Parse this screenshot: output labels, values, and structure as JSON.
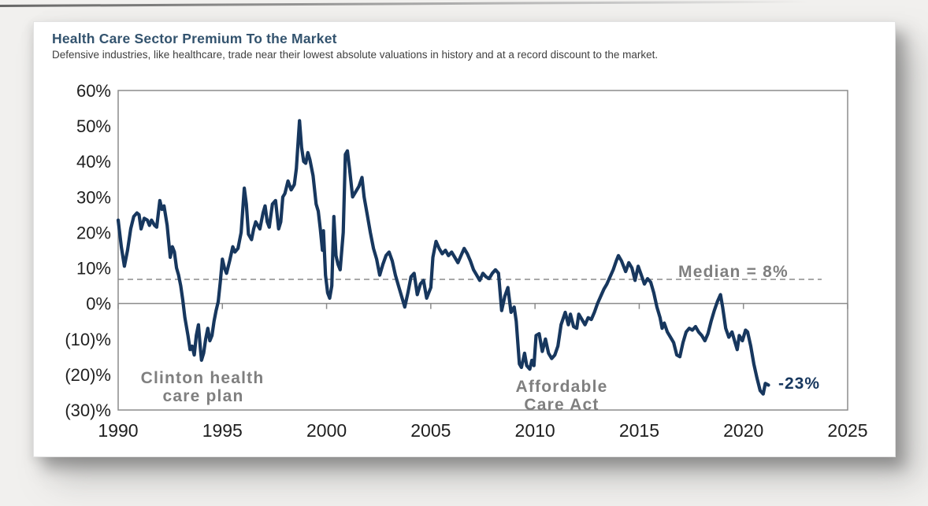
{
  "chart_data": {
    "type": "line",
    "title": "Health Care Sector Premium To the Market",
    "subtitle": "Defensive industries, like healthcare, trade near their lowest absolute valuations in history and at a record discount to the market.",
    "x_axis": {
      "min": 1990,
      "max": 2025,
      "ticks": [
        {
          "label": "1990",
          "value": 1990
        },
        {
          "label": "1995",
          "value": 1995
        },
        {
          "label": "2000",
          "value": 2000
        },
        {
          "label": "2005",
          "value": 2005
        },
        {
          "label": "2010",
          "value": 2010
        },
        {
          "label": "2015",
          "value": 2015
        },
        {
          "label": "2020",
          "value": 2020
        },
        {
          "label": "2025",
          "value": 2025
        }
      ]
    },
    "y_axis": {
      "min": -30,
      "max": 60,
      "ticks": [
        {
          "label": "60%",
          "value": 60
        },
        {
          "label": "50%",
          "value": 50
        },
        {
          "label": "40%",
          "value": 40
        },
        {
          "label": "30%",
          "value": 30
        },
        {
          "label": "20%",
          "value": 20
        },
        {
          "label": "10%",
          "value": 10
        },
        {
          "label": "0%",
          "value": 0
        },
        {
          "label": "(10)%",
          "value": -10
        },
        {
          "label": "(20)%",
          "value": -20
        },
        {
          "label": "(30)%",
          "value": -30
        }
      ]
    },
    "grid": "zero axis line and dashed median line only",
    "legend_position": "none",
    "median": {
      "label": "Median = 8%",
      "value": 8,
      "line_value": 6.8
    },
    "annotations": [
      {
        "name": "clinton-health-care-plan",
        "lines": [
          "Clinton health",
          "care plan"
        ]
      },
      {
        "name": "affordable-care-act",
        "lines": [
          "Affordable",
          "Care Act"
        ]
      }
    ],
    "end_label": "-23%",
    "colors": {
      "line": "#17375e",
      "annotation_text": "#7f7f7f",
      "axis": "#8c8c8c",
      "median_line": "#a8a8a8",
      "end_label": "#17375e",
      "title": "#33536e"
    },
    "series": [
      {
        "name": "Health care sector premium to the market",
        "points": [
          [
            1990.0,
            23.5
          ],
          [
            1990.15,
            16
          ],
          [
            1990.3,
            10.5
          ],
          [
            1990.45,
            15
          ],
          [
            1990.6,
            21
          ],
          [
            1990.75,
            24.5
          ],
          [
            1990.9,
            25.5
          ],
          [
            1991.0,
            25
          ],
          [
            1991.1,
            21
          ],
          [
            1991.25,
            24
          ],
          [
            1991.4,
            23.5
          ],
          [
            1991.5,
            22
          ],
          [
            1991.6,
            23.5
          ],
          [
            1991.75,
            22
          ],
          [
            1991.85,
            21.5
          ],
          [
            1992.0,
            29
          ],
          [
            1992.1,
            26.5
          ],
          [
            1992.2,
            27.5
          ],
          [
            1992.35,
            22
          ],
          [
            1992.5,
            13
          ],
          [
            1992.6,
            16
          ],
          [
            1992.7,
            14.5
          ],
          [
            1992.8,
            10
          ],
          [
            1992.9,
            8
          ],
          [
            1993.0,
            5
          ],
          [
            1993.1,
            1
          ],
          [
            1993.2,
            -4
          ],
          [
            1993.35,
            -9
          ],
          [
            1993.45,
            -13
          ],
          [
            1993.55,
            -12
          ],
          [
            1993.65,
            -14.5
          ],
          [
            1993.75,
            -9
          ],
          [
            1993.85,
            -6
          ],
          [
            1993.95,
            -13
          ],
          [
            1994.0,
            -16
          ],
          [
            1994.1,
            -14
          ],
          [
            1994.2,
            -10
          ],
          [
            1994.3,
            -7
          ],
          [
            1994.4,
            -10.5
          ],
          [
            1994.5,
            -9
          ],
          [
            1994.6,
            -5
          ],
          [
            1994.7,
            -2
          ],
          [
            1994.8,
            0.5
          ],
          [
            1994.9,
            6
          ],
          [
            1995.0,
            12.5
          ],
          [
            1995.1,
            10
          ],
          [
            1995.2,
            8.5
          ],
          [
            1995.35,
            12
          ],
          [
            1995.5,
            16
          ],
          [
            1995.6,
            14.5
          ],
          [
            1995.75,
            15.5
          ],
          [
            1995.9,
            20
          ],
          [
            1996.05,
            32.5
          ],
          [
            1996.15,
            28
          ],
          [
            1996.25,
            19.5
          ],
          [
            1996.4,
            18
          ],
          [
            1996.5,
            21
          ],
          [
            1996.6,
            23
          ],
          [
            1996.7,
            22
          ],
          [
            1996.8,
            21
          ],
          [
            1996.95,
            25.5
          ],
          [
            1997.05,
            27.5
          ],
          [
            1997.15,
            23
          ],
          [
            1997.25,
            21.5
          ],
          [
            1997.4,
            28
          ],
          [
            1997.55,
            29
          ],
          [
            1997.7,
            21
          ],
          [
            1997.8,
            23
          ],
          [
            1997.9,
            30
          ],
          [
            1998.0,
            31
          ],
          [
            1998.15,
            34.5
          ],
          [
            1998.3,
            32
          ],
          [
            1998.45,
            33.5
          ],
          [
            1998.55,
            38
          ],
          [
            1998.7,
            51.5
          ],
          [
            1998.8,
            44
          ],
          [
            1998.9,
            40
          ],
          [
            1999.0,
            39.5
          ],
          [
            1999.1,
            42.5
          ],
          [
            1999.2,
            40.5
          ],
          [
            1999.35,
            36
          ],
          [
            1999.5,
            28
          ],
          [
            1999.6,
            26
          ],
          [
            1999.7,
            21
          ],
          [
            1999.8,
            15
          ],
          [
            1999.85,
            20.5
          ],
          [
            1999.95,
            8
          ],
          [
            2000.05,
            3
          ],
          [
            2000.15,
            1.5
          ],
          [
            2000.25,
            5
          ],
          [
            2000.35,
            24.5
          ],
          [
            2000.45,
            13.5
          ],
          [
            2000.55,
            11
          ],
          [
            2000.65,
            9.5
          ],
          [
            2000.8,
            20
          ],
          [
            2000.9,
            42
          ],
          [
            2001.0,
            43
          ],
          [
            2001.1,
            38
          ],
          [
            2001.25,
            30
          ],
          [
            2001.4,
            31.5
          ],
          [
            2001.55,
            33
          ],
          [
            2001.7,
            35.5
          ],
          [
            2001.8,
            30
          ],
          [
            2001.95,
            25
          ],
          [
            2002.1,
            20
          ],
          [
            2002.25,
            15.5
          ],
          [
            2002.4,
            12.5
          ],
          [
            2002.55,
            8
          ],
          [
            2002.7,
            11
          ],
          [
            2002.85,
            13.5
          ],
          [
            2003.0,
            14.5
          ],
          [
            2003.15,
            12
          ],
          [
            2003.3,
            8
          ],
          [
            2003.45,
            5
          ],
          [
            2003.6,
            2
          ],
          [
            2003.75,
            -1
          ],
          [
            2003.9,
            3
          ],
          [
            2004.05,
            7.5
          ],
          [
            2004.2,
            8.5
          ],
          [
            2004.35,
            2.5
          ],
          [
            2004.5,
            5.5
          ],
          [
            2004.65,
            6.5
          ],
          [
            2004.8,
            1.5
          ],
          [
            2004.9,
            3
          ],
          [
            2005.0,
            4.5
          ],
          [
            2005.1,
            13
          ],
          [
            2005.25,
            17.5
          ],
          [
            2005.4,
            15.5
          ],
          [
            2005.55,
            14
          ],
          [
            2005.7,
            15
          ],
          [
            2005.85,
            13.5
          ],
          [
            2006.0,
            14.5
          ],
          [
            2006.15,
            13
          ],
          [
            2006.3,
            11.5
          ],
          [
            2006.45,
            13.5
          ],
          [
            2006.6,
            15.5
          ],
          [
            2006.75,
            14
          ],
          [
            2006.9,
            12
          ],
          [
            2007.05,
            9.5
          ],
          [
            2007.2,
            8
          ],
          [
            2007.35,
            6.5
          ],
          [
            2007.5,
            8.5
          ],
          [
            2007.65,
            7.5
          ],
          [
            2007.8,
            7
          ],
          [
            2007.95,
            8.5
          ],
          [
            2008.1,
            9.5
          ],
          [
            2008.25,
            8.5
          ],
          [
            2008.4,
            -2
          ],
          [
            2008.55,
            2
          ],
          [
            2008.7,
            4.5
          ],
          [
            2008.85,
            -2.5
          ],
          [
            2009.0,
            -1
          ],
          [
            2009.1,
            -5
          ],
          [
            2009.25,
            -17
          ],
          [
            2009.35,
            -18
          ],
          [
            2009.5,
            -14
          ],
          [
            2009.6,
            -17.5
          ],
          [
            2009.75,
            -18.5
          ],
          [
            2009.85,
            -16
          ],
          [
            2009.95,
            -17.5
          ],
          [
            2010.05,
            -9
          ],
          [
            2010.2,
            -8.5
          ],
          [
            2010.35,
            -13.5
          ],
          [
            2010.5,
            -10
          ],
          [
            2010.65,
            -14
          ],
          [
            2010.8,
            -15.5
          ],
          [
            2010.95,
            -14.5
          ],
          [
            2011.1,
            -12
          ],
          [
            2011.25,
            -6
          ],
          [
            2011.45,
            -2.5
          ],
          [
            2011.6,
            -6
          ],
          [
            2011.7,
            -3
          ],
          [
            2011.85,
            -6.5
          ],
          [
            2012.0,
            -7
          ],
          [
            2012.1,
            -3
          ],
          [
            2012.25,
            -4.5
          ],
          [
            2012.4,
            -6
          ],
          [
            2012.55,
            -4
          ],
          [
            2012.7,
            -4.5
          ],
          [
            2012.85,
            -2.5
          ],
          [
            2013.0,
            0
          ],
          [
            2013.15,
            2
          ],
          [
            2013.3,
            4
          ],
          [
            2013.45,
            5.5
          ],
          [
            2013.6,
            7.5
          ],
          [
            2013.75,
            9.5
          ],
          [
            2013.9,
            12
          ],
          [
            2014.0,
            13.5
          ],
          [
            2014.15,
            12
          ],
          [
            2014.35,
            9
          ],
          [
            2014.5,
            11.5
          ],
          [
            2014.65,
            10
          ],
          [
            2014.8,
            6.5
          ],
          [
            2014.95,
            10.5
          ],
          [
            2015.1,
            8
          ],
          [
            2015.25,
            5.5
          ],
          [
            2015.4,
            7
          ],
          [
            2015.55,
            6
          ],
          [
            2015.7,
            3
          ],
          [
            2015.85,
            -1
          ],
          [
            2016.0,
            -4
          ],
          [
            2016.1,
            -7
          ],
          [
            2016.2,
            -5.5
          ],
          [
            2016.35,
            -8
          ],
          [
            2016.5,
            -9.5
          ],
          [
            2016.65,
            -11
          ],
          [
            2016.8,
            -14.5
          ],
          [
            2016.95,
            -15
          ],
          [
            2017.1,
            -11
          ],
          [
            2017.25,
            -8
          ],
          [
            2017.4,
            -7
          ],
          [
            2017.55,
            -7.5
          ],
          [
            2017.7,
            -6.5
          ],
          [
            2017.85,
            -8
          ],
          [
            2018.0,
            -9
          ],
          [
            2018.15,
            -10.5
          ],
          [
            2018.3,
            -8.5
          ],
          [
            2018.45,
            -5
          ],
          [
            2018.6,
            -2
          ],
          [
            2018.75,
            0.5
          ],
          [
            2018.9,
            2.5
          ],
          [
            2019.0,
            -1
          ],
          [
            2019.15,
            -7
          ],
          [
            2019.3,
            -9.5
          ],
          [
            2019.45,
            -8
          ],
          [
            2019.6,
            -11
          ],
          [
            2019.7,
            -13
          ],
          [
            2019.8,
            -9
          ],
          [
            2019.95,
            -10.5
          ],
          [
            2020.1,
            -7.5
          ],
          [
            2020.2,
            -8
          ],
          [
            2020.35,
            -12
          ],
          [
            2020.5,
            -17
          ],
          [
            2020.65,
            -21
          ],
          [
            2020.8,
            -24.5
          ],
          [
            2020.95,
            -25.5
          ],
          [
            2021.05,
            -22.5
          ],
          [
            2021.2,
            -23
          ]
        ]
      }
    ]
  }
}
